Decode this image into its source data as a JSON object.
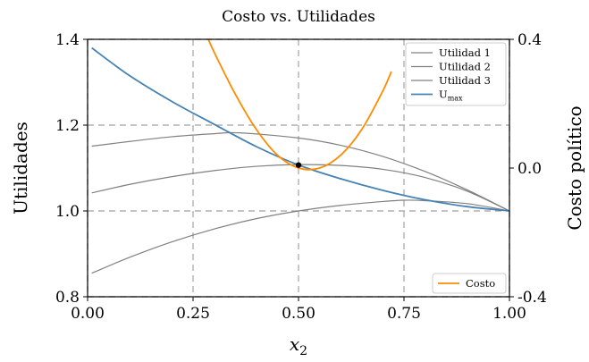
{
  "chart_data": {
    "type": "line",
    "title": "Costo vs. Utilidades",
    "xlabel": "x",
    "xlabel_subscript": "2",
    "ylabel_left": "Utilidades",
    "ylabel_right": "Costo político",
    "xlim": [
      0,
      1
    ],
    "ylim_left": [
      0.8,
      1.4
    ],
    "ylim_right": [
      -0.4,
      0.4
    ],
    "x_ticks": [
      "0.00",
      "0.25",
      "0.50",
      "0.75",
      "1.00"
    ],
    "y_left_ticks": [
      "0.8",
      "1.0",
      "1.2",
      "1.4"
    ],
    "y_right_ticks": [
      "-0.4",
      "0.0",
      "0.4"
    ],
    "grid": true,
    "legend_left_position": "top-right",
    "legend_right_position": "bottom-right",
    "colors": {
      "utility": "#808080",
      "umax": "#4682b4",
      "cost": "#ff8c00",
      "grid": "#b0b0b0"
    },
    "series_left": [
      {
        "name": "Utilidad 1",
        "color": "#808080",
        "x": [
          0.01,
          0.1,
          0.2,
          0.3,
          0.36,
          0.5,
          0.6,
          0.7,
          0.8,
          0.9,
          1.0
        ],
        "y": [
          1.151,
          1.162,
          1.173,
          1.18,
          1.182,
          1.17,
          1.153,
          1.127,
          1.092,
          1.049,
          1.0
        ]
      },
      {
        "name": "Utilidad 2",
        "color": "#808080",
        "x": [
          0.01,
          0.1,
          0.2,
          0.3,
          0.4,
          0.5,
          0.6,
          0.7,
          0.8,
          0.9,
          1.0
        ],
        "y": [
          1.042,
          1.062,
          1.08,
          1.094,
          1.104,
          1.108,
          1.106,
          1.097,
          1.078,
          1.046,
          1.0
        ]
      },
      {
        "name": "Utilidad 3",
        "color": "#808080",
        "x": [
          0.01,
          0.1,
          0.2,
          0.3,
          0.4,
          0.5,
          0.6,
          0.7,
          0.75,
          0.8,
          0.9,
          1.0
        ],
        "y": [
          0.855,
          0.892,
          0.928,
          0.958,
          0.982,
          1.0,
          1.013,
          1.022,
          1.025,
          1.024,
          1.017,
          1.0
        ]
      },
      {
        "name": "U",
        "name_subscript": "max",
        "color": "#4682b4",
        "x": [
          0.01,
          0.1,
          0.2,
          0.3,
          0.4,
          0.5,
          0.6,
          0.7,
          0.8,
          0.9,
          1.0
        ],
        "y": [
          1.38,
          1.315,
          1.255,
          1.202,
          1.15,
          1.107,
          1.075,
          1.048,
          1.026,
          1.01,
          1.0
        ]
      }
    ],
    "series_right": [
      {
        "name": "Costo",
        "color": "#ff8c00",
        "x": [
          0.28,
          0.3,
          0.35,
          0.4,
          0.45,
          0.5,
          0.55,
          0.6,
          0.65,
          0.7,
          0.72
        ],
        "y": [
          0.42,
          0.36,
          0.23,
          0.12,
          0.04,
          0.0,
          0.0,
          0.04,
          0.12,
          0.24,
          0.3
        ]
      }
    ],
    "annotations": [
      {
        "type": "point",
        "x": 0.5,
        "y_left": 1.107,
        "color": "#000000"
      }
    ]
  }
}
